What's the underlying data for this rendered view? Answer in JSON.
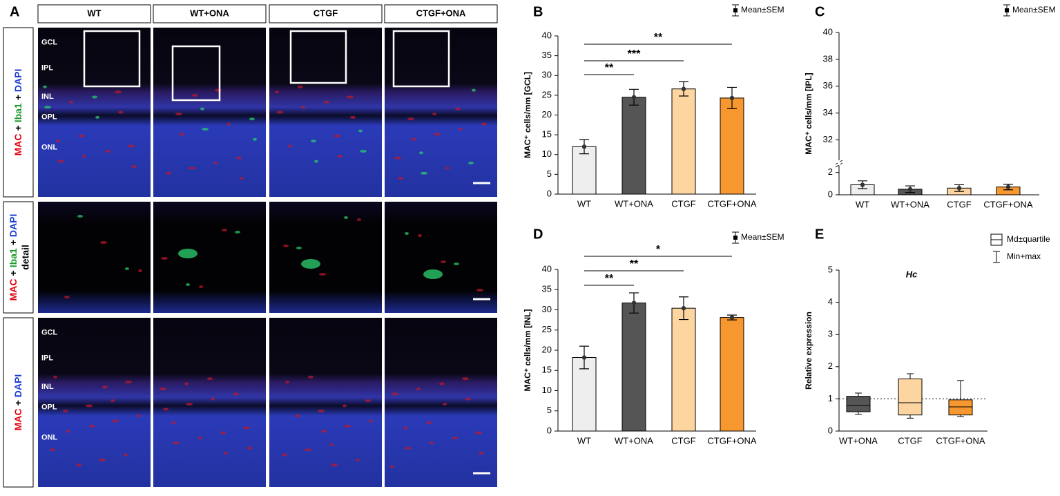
{
  "panel_a": {
    "letter": "A",
    "columns": [
      "WT",
      "WT+ONA",
      "CTGF",
      "CTGF+ONA"
    ],
    "rows": [
      {
        "label": [
          "MAC",
          "+",
          "Iba1",
          "+",
          "DAPI"
        ],
        "label_colors": [
          "#e3000f",
          "#000000",
          "#1a9a2a",
          "#000000",
          "#1c3fd0"
        ]
      },
      {
        "label": [
          "MAC",
          "+",
          "Iba1",
          "+",
          "DAPI"
        ],
        "label_colors": [
          "#e3000f",
          "#000000",
          "#1a9a2a",
          "#000000",
          "#1c3fd0"
        ],
        "label2": "detail"
      },
      {
        "label": [
          "MAC",
          "+",
          "DAPI"
        ],
        "label_colors": [
          "#e3000f",
          "#000000",
          "#1c3fd0"
        ]
      }
    ],
    "layers": [
      "GCL",
      "IPL",
      "INL",
      "OPL",
      "ONL"
    ]
  },
  "chart_data": [
    {
      "type": "bar",
      "letter": "B",
      "ylabel": "MAC⁺ cells/mm [GCL]",
      "legend": [
        "Mean±SEM"
      ],
      "categories": [
        "WT",
        "WT+ONA",
        "CTGF",
        "CTGF+ONA"
      ],
      "values": [
        12,
        24.5,
        26.6,
        24.3
      ],
      "errors": [
        1.8,
        2.0,
        1.8,
        2.7
      ],
      "colors": [
        "#eeeeee",
        "#555555",
        "#fcd5a0",
        "#f7972f"
      ],
      "ylim": [
        0,
        40
      ],
      "yticks": [
        0,
        5,
        10,
        15,
        20,
        25,
        30,
        35,
        40
      ],
      "significance": [
        "**",
        "***",
        "**"
      ]
    },
    {
      "type": "bar",
      "letter": "C",
      "ylabel": "MAC⁺ cells/mm [IPL]",
      "legend": [
        "Mean±SEM"
      ],
      "categories": [
        "WT",
        "WT+ONA",
        "CTGF",
        "CTGF+ONA"
      ],
      "values": [
        0.9,
        0.5,
        0.6,
        0.7
      ],
      "errors": [
        0.35,
        0.3,
        0.3,
        0.25
      ],
      "colors": [
        "#eeeeee",
        "#555555",
        "#fcd5a0",
        "#f7972f"
      ],
      "ylim": [
        0,
        2.6
      ],
      "yticks": [
        0,
        2
      ],
      "upper_ylim": [
        31,
        40
      ],
      "upper_yticks": [
        32,
        34,
        36,
        38,
        40
      ]
    },
    {
      "type": "bar",
      "letter": "D",
      "ylabel": "MAC⁺ cells/mm [INL]",
      "legend": [
        "Mean±SEM"
      ],
      "categories": [
        "WT",
        "WT+ONA",
        "CTGF",
        "CTGF+ONA"
      ],
      "values": [
        18.2,
        31.7,
        30.4,
        28.1
      ],
      "errors": [
        2.8,
        2.5,
        2.8,
        0.6
      ],
      "colors": [
        "#eeeeee",
        "#555555",
        "#fcd5a0",
        "#f7972f"
      ],
      "ylim": [
        0,
        40
      ],
      "yticks": [
        0,
        5,
        10,
        15,
        20,
        25,
        30,
        35,
        40
      ],
      "significance": [
        "**",
        "**",
        "*"
      ]
    },
    {
      "type": "box",
      "letter": "E",
      "title": "Hc",
      "ylabel": "Relative expression",
      "legend": [
        "Md±quartile",
        "Min+max"
      ],
      "categories": [
        "WT+ONA",
        "CTGF",
        "CTGF+ONA"
      ],
      "colors": [
        "#555555",
        "#fcd5a0",
        "#f7972f"
      ],
      "boxes": [
        {
          "min": 0.52,
          "q1": 0.6,
          "median": 0.8,
          "q3": 1.08,
          "max": 1.18
        },
        {
          "min": 0.4,
          "q1": 0.5,
          "median": 0.88,
          "q3": 1.62,
          "max": 1.78
        },
        {
          "min": 0.45,
          "q1": 0.5,
          "median": 0.75,
          "q3": 0.97,
          "max": 1.57
        }
      ],
      "reference": 1,
      "ylim": [
        0,
        5
      ],
      "yticks": [
        0,
        1,
        2,
        3,
        4,
        5
      ]
    }
  ]
}
